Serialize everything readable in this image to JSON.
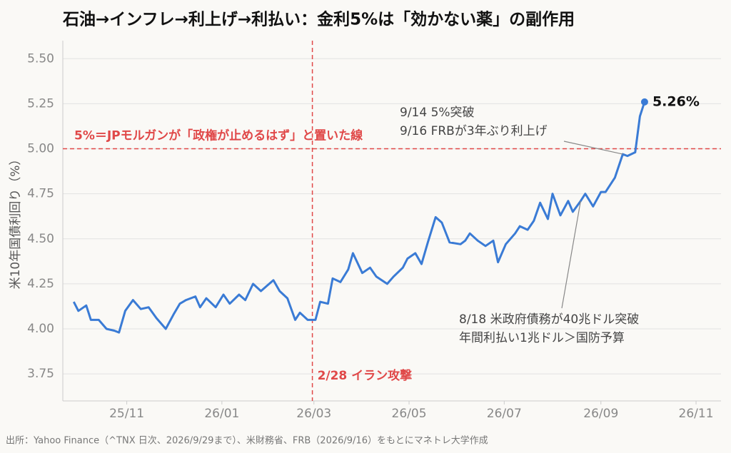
{
  "chart_data": {
    "type": "line",
    "title": "石油→インフレ→利上げ→利払い：金利5%は「効かない薬」の副作用",
    "ylabel": "米10年国債利回り（%）",
    "source": "出所：Yahoo Finance（^TNX 日次、2026/9/29まで）、米財務省、FRB（2026/9/16）をもとにマネトレ大学作成",
    "color": "#3a7bd5",
    "x": [
      "2025-09-28",
      "2025-10-01",
      "2025-10-06",
      "2025-10-09",
      "2025-10-14",
      "2025-10-19",
      "2025-10-24",
      "2025-10-27",
      "2025-10-31",
      "2025-11-05",
      "2025-11-10",
      "2025-11-15",
      "2025-11-20",
      "2025-11-26",
      "2025-12-01",
      "2025-12-05",
      "2025-12-09",
      "2025-12-15",
      "2025-12-18",
      "2025-12-22",
      "2025-12-28",
      "2026-01-02",
      "2026-01-06",
      "2026-01-12",
      "2026-01-16",
      "2026-01-21",
      "2026-01-26",
      "2026-01-30",
      "2026-02-03",
      "2026-02-07",
      "2026-02-12",
      "2026-02-17",
      "2026-02-20",
      "2026-02-25",
      "2026-03-02",
      "2026-03-05",
      "2026-03-10",
      "2026-03-13",
      "2026-03-18",
      "2026-03-23",
      "2026-03-26",
      "2026-04-01",
      "2026-04-06",
      "2026-04-10",
      "2026-04-17",
      "2026-04-21",
      "2026-04-27",
      "2026-04-30",
      "2026-05-05",
      "2026-05-09",
      "2026-05-13",
      "2026-05-18",
      "2026-05-22",
      "2026-05-27",
      "2026-06-03",
      "2026-06-06",
      "2026-06-09",
      "2026-06-14",
      "2026-06-19",
      "2026-06-24",
      "2026-06-27",
      "2026-07-02",
      "2026-07-08",
      "2026-07-11",
      "2026-07-16",
      "2026-07-20",
      "2026-07-24",
      "2026-07-29",
      "2026-08-01",
      "2026-08-06",
      "2026-08-11",
      "2026-08-14",
      "2026-08-19",
      "2026-08-22",
      "2026-08-27",
      "2026-09-01",
      "2026-09-04",
      "2026-09-10",
      "2026-09-15",
      "2026-09-18",
      "2026-09-23",
      "2026-09-26",
      "2026-09-29"
    ],
    "values": [
      4.15,
      4.1,
      4.13,
      4.05,
      4.05,
      4.0,
      3.99,
      3.98,
      4.1,
      4.16,
      4.11,
      4.12,
      4.06,
      4.0,
      4.08,
      4.14,
      4.16,
      4.18,
      4.12,
      4.17,
      4.12,
      4.19,
      4.14,
      4.19,
      4.16,
      4.25,
      4.21,
      4.24,
      4.27,
      4.21,
      4.17,
      4.05,
      4.09,
      4.05,
      4.05,
      4.15,
      4.14,
      4.28,
      4.26,
      4.33,
      4.42,
      4.31,
      4.34,
      4.29,
      4.25,
      4.29,
      4.34,
      4.39,
      4.42,
      4.36,
      4.48,
      4.62,
      4.59,
      4.48,
      4.47,
      4.49,
      4.53,
      4.49,
      4.46,
      4.49,
      4.37,
      4.47,
      4.53,
      4.57,
      4.55,
      4.6,
      4.7,
      4.61,
      4.75,
      4.63,
      4.71,
      4.65,
      4.71,
      4.75,
      4.68,
      4.76,
      4.76,
      4.84,
      4.97,
      4.96,
      4.98,
      5.18,
      5.26
    ],
    "end_label": "5.26%",
    "xlim": [
      "2025-09-21",
      "2026-11-17"
    ],
    "xticks": [
      {
        "value": "2025-11",
        "label": "25/11"
      },
      {
        "value": "2026-01",
        "label": "26/01"
      },
      {
        "value": "2026-03",
        "label": "26/03"
      },
      {
        "value": "2026-05",
        "label": "26/05"
      },
      {
        "value": "2026-07",
        "label": "26/07"
      },
      {
        "value": "2026-09",
        "label": "26/09"
      },
      {
        "value": "2026-11",
        "label": "26/11"
      }
    ],
    "ylim": [
      3.6,
      5.6
    ],
    "yticks": [
      3.75,
      {
        "value": 4,
        "label": "4.00"
      },
      4.25,
      {
        "value": 4.5,
        "label": "4.50"
      },
      4.75,
      {
        "value": 5,
        "label": "5.00"
      },
      5.25,
      {
        "value": 5.5,
        "label": "5.50"
      }
    ],
    "grid": true,
    "hline": {
      "y": 5.0,
      "text": "5%＝JPモルガンが「政権が止めるはず」と置いた線",
      "color": "#e04848"
    },
    "vline": {
      "x": "2026-02-28",
      "text": "2/28 イラン攻撃",
      "color": "#e04848"
    },
    "callouts": [
      {
        "x": "2026-09-15",
        "y": 4.97,
        "lines": [
          "9/14 5%突破",
          "9/16 FRBが3年ぶり利上げ"
        ]
      },
      {
        "x": "2026-08-19",
        "y": 4.71,
        "lines": [
          "8/18 米政府債務が40兆ドル突破",
          "年間利払い1兆ドル＞国防予算"
        ]
      }
    ]
  }
}
